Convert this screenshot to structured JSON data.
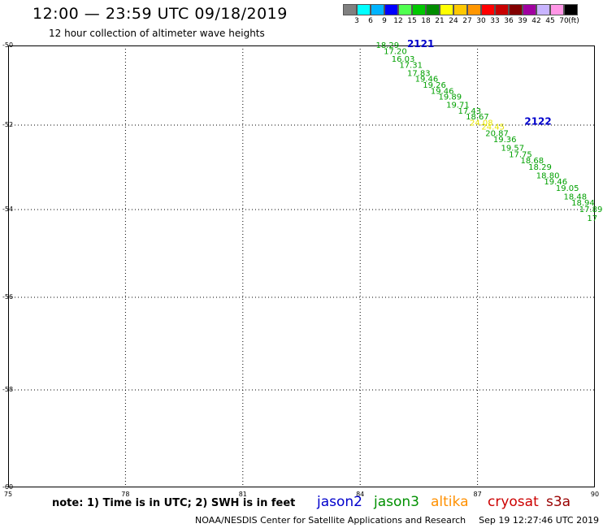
{
  "header": {
    "title": "12:00 — 23:59 UTC 09/18/2019",
    "subtitle": "12 hour collection of altimeter wave heights"
  },
  "color_scale": {
    "colors": [
      "#808080",
      "#00ffff",
      "#00b4ff",
      "#0000ff",
      "#50ff50",
      "#00c800",
      "#008c00",
      "#ffff00",
      "#ffc800",
      "#ff9600",
      "#ff0000",
      "#c80000",
      "#820000",
      "#a000a0",
      "#c8b4ff",
      "#ff96e6",
      "#000000"
    ],
    "labels": [
      "3",
      "6",
      "9",
      "12",
      "15",
      "18",
      "21",
      "24",
      "27",
      "30",
      "33",
      "36",
      "39",
      "42",
      "45",
      "70",
      "(ft)"
    ]
  },
  "map": {
    "lat_labels": [
      "-50",
      "-52",
      "-54",
      "-56",
      "-58",
      "-60"
    ],
    "lon_labels": [
      "75",
      "78",
      "81",
      "84",
      "87",
      "90"
    ],
    "pass_labels": [
      {
        "text": "2121",
        "lon": 85.2,
        "lat": -50.0,
        "color": "#0000cc"
      },
      {
        "text": "2122",
        "lon": 88.2,
        "lat": -51.95,
        "color": "#0000cc"
      }
    ],
    "wave_heights": [
      {
        "v": "18.29",
        "lon": 84.4,
        "lat": -50.0,
        "color": "#00a000"
      },
      {
        "v": "17.20",
        "lon": 84.6,
        "lat": -50.15,
        "color": "#00a000"
      },
      {
        "v": "16.03",
        "lon": 84.8,
        "lat": -50.35,
        "color": "#00a000"
      },
      {
        "v": "17.31",
        "lon": 85.0,
        "lat": -50.5,
        "color": "#00a000"
      },
      {
        "v": "17.83",
        "lon": 85.2,
        "lat": -50.7,
        "color": "#00a000"
      },
      {
        "v": "19.46",
        "lon": 85.4,
        "lat": -50.85,
        "color": "#00a000"
      },
      {
        "v": "19.26",
        "lon": 85.6,
        "lat": -51.0,
        "color": "#00a000"
      },
      {
        "v": "19.46",
        "lon": 85.8,
        "lat": -51.15,
        "color": "#00a000"
      },
      {
        "v": "19.89",
        "lon": 86.0,
        "lat": -51.3,
        "color": "#00a000"
      },
      {
        "v": "19.71",
        "lon": 86.2,
        "lat": -51.5,
        "color": "#00a000"
      },
      {
        "v": "17.43",
        "lon": 86.5,
        "lat": -51.65,
        "color": "#00a000"
      },
      {
        "v": "18.67",
        "lon": 86.7,
        "lat": -51.8,
        "color": "#00a000"
      },
      {
        "v": "24.08",
        "lon": 86.8,
        "lat": -51.95,
        "color": "#e6e600"
      },
      {
        "v": "24.45",
        "lon": 87.1,
        "lat": -52.05,
        "color": "#e6e600"
      },
      {
        "v": "20.87",
        "lon": 87.2,
        "lat": -52.2,
        "color": "#00a000"
      },
      {
        "v": "19.36",
        "lon": 87.4,
        "lat": -52.35,
        "color": "#00a000"
      },
      {
        "v": "19.57",
        "lon": 87.6,
        "lat": -52.55,
        "color": "#00a000"
      },
      {
        "v": "17.75",
        "lon": 87.8,
        "lat": -52.7,
        "color": "#00a000"
      },
      {
        "v": "18.68",
        "lon": 88.1,
        "lat": -52.85,
        "color": "#00a000"
      },
      {
        "v": "18.29",
        "lon": 88.3,
        "lat": -53.0,
        "color": "#00a000"
      },
      {
        "v": "18.80",
        "lon": 88.5,
        "lat": -53.2,
        "color": "#00a000"
      },
      {
        "v": "19.46",
        "lon": 88.7,
        "lat": -53.35,
        "color": "#00a000"
      },
      {
        "v": "19.05",
        "lon": 89.0,
        "lat": -53.5,
        "color": "#00a000"
      },
      {
        "v": "18.48",
        "lon": 89.2,
        "lat": -53.7,
        "color": "#00a000"
      },
      {
        "v": "18.94",
        "lon": 89.4,
        "lat": -53.85,
        "color": "#00a000"
      },
      {
        "v": "17.89",
        "lon": 89.6,
        "lat": -54.0,
        "color": "#00a000"
      },
      {
        "v": "17",
        "lon": 89.8,
        "lat": -54.2,
        "color": "#00a000"
      }
    ]
  },
  "footer": {
    "note": "note: 1) Time is in UTC; 2) SWH is in feet",
    "legend": [
      {
        "name": "jason2",
        "color": "#0000cc"
      },
      {
        "name": "jason3",
        "color": "#009000"
      },
      {
        "name": "altika",
        "color": "#ff9000"
      },
      {
        "name": "cryosat",
        "color": "#cc0000"
      },
      {
        "name": "s3a",
        "color": "#990000"
      }
    ],
    "credit": "NOAA/NESDIS Center for Satellite Applications and Research",
    "timestamp": "Sep 19 12:27:46 UTC 2019"
  }
}
